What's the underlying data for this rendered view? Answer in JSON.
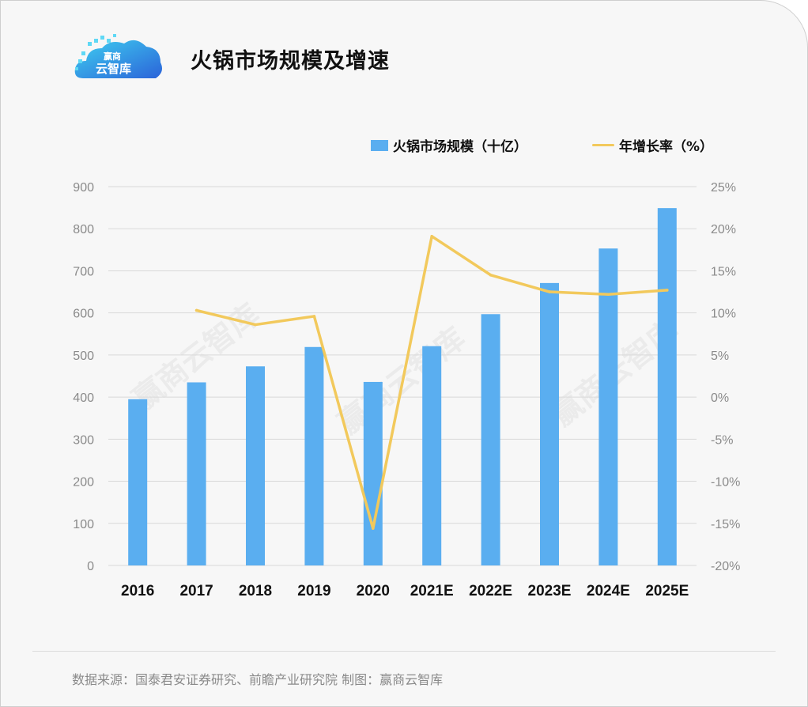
{
  "header": {
    "logo_text": "赢商云智库",
    "title": "火锅市场规模及增速"
  },
  "legend": {
    "bar_label": "火锅市场规模（十亿）",
    "line_label": "年增长率（%）"
  },
  "footer": {
    "source": "数据来源：国泰君安证券研究、前瞻产业研究院   制图：赢商云智库"
  },
  "colors": {
    "bar": "#5aaef0",
    "line": "#f2c95c"
  },
  "chart_data": {
    "type": "bar",
    "title": "火锅市场规模及增速",
    "categories": [
      "2016",
      "2017",
      "2018",
      "2019",
      "2020",
      "2021E",
      "2022E",
      "2023E",
      "2024E",
      "2025E"
    ],
    "series": [
      {
        "name": "火锅市场规模（十亿）",
        "type": "bar",
        "axis": "left",
        "values": [
          395,
          435,
          473,
          519,
          436,
          521,
          597,
          671,
          753,
          849
        ]
      },
      {
        "name": "年增长率（%）",
        "type": "line",
        "axis": "right",
        "values": [
          null,
          10.3,
          8.6,
          9.6,
          -15.6,
          19.1,
          14.5,
          12.5,
          12.2,
          12.7
        ]
      }
    ],
    "y_left": {
      "min": 0,
      "max": 900,
      "ticks": [
        "0",
        "100",
        "200",
        "300",
        "400",
        "500",
        "600",
        "700",
        "800",
        "900"
      ]
    },
    "y_right": {
      "min": -20,
      "max": 25,
      "ticks": [
        "-20%",
        "-15%",
        "-10%",
        "-5%",
        "0%",
        "5%",
        "10%",
        "15%",
        "20%",
        "25%"
      ]
    },
    "grid": "horizontal",
    "legend_position": "top-right"
  }
}
